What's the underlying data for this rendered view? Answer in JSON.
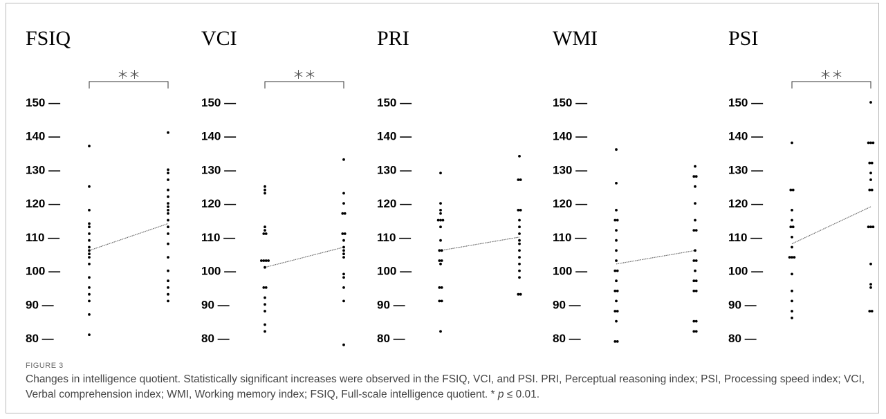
{
  "figure": {
    "label": "FIGURE 3",
    "caption_main": "Changes in intelligence quotient. Statistically significant increases were observed in the FSIQ, VCI, and PSI. PRI, Perceptual reasoning index; PSI, Processing speed index; VCI, Verbal comprehension index; WMI, Working memory index; FSIQ, Full-scale intelligence quotient. * ",
    "caption_p": "p",
    "caption_tail": " ≤ 0.01.",
    "tick_suffix": " —"
  },
  "colors": {
    "points": "#000000",
    "mean_line": "#666666",
    "bracket": "#333333",
    "text": "#000000"
  },
  "chart_data": [
    {
      "type": "scatter",
      "title": "FSIQ",
      "significance": "＊＊",
      "yticks": [
        80,
        90,
        100,
        110,
        120,
        130,
        140,
        150
      ],
      "ylim": [
        78,
        152
      ],
      "mean": [
        106,
        114
      ],
      "x": [
        "pre",
        "post"
      ],
      "pre": [
        137,
        125,
        118,
        114,
        113,
        111,
        109,
        107,
        106,
        105,
        104,
        102,
        98,
        95,
        93,
        91,
        87,
        81
      ],
      "post": [
        141,
        130,
        129,
        127,
        124,
        122,
        120,
        119,
        118,
        117,
        115,
        113,
        111,
        108,
        104,
        100,
        97,
        95,
        93,
        91
      ]
    },
    {
      "type": "scatter",
      "title": "VCI",
      "significance": "＊＊",
      "yticks": [
        80,
        90,
        100,
        110,
        120,
        130,
        140,
        150
      ],
      "ylim": [
        78,
        152
      ],
      "mean": [
        101,
        107
      ],
      "x": [
        "pre",
        "post"
      ],
      "pre": [
        125,
        124,
        123,
        113,
        112,
        111,
        111,
        103,
        103,
        103,
        103,
        101,
        95,
        95,
        92,
        90,
        88,
        84,
        82
      ],
      "post": [
        133,
        123,
        120,
        117,
        117,
        111,
        111,
        109,
        107,
        106,
        105,
        104,
        99,
        98,
        95,
        91,
        78
      ]
    },
    {
      "type": "scatter",
      "title": "PRI",
      "yticks": [
        80,
        90,
        100,
        110,
        120,
        130,
        140,
        150
      ],
      "ylim": [
        78,
        152
      ],
      "mean": [
        106,
        110
      ],
      "x": [
        "pre",
        "post"
      ],
      "pre": [
        129,
        120,
        118,
        117,
        115,
        115,
        115,
        113,
        109,
        106,
        106,
        103,
        103,
        102,
        95,
        95,
        91,
        91,
        82
      ],
      "post": [
        134,
        127,
        127,
        118,
        118,
        115,
        113,
        111,
        109,
        108,
        106,
        104,
        102,
        100,
        98,
        93,
        93
      ]
    },
    {
      "type": "scatter",
      "title": "WMI",
      "yticks": [
        80,
        90,
        100,
        110,
        120,
        130,
        140,
        150
      ],
      "ylim": [
        78,
        152
      ],
      "mean": [
        102,
        106
      ],
      "x": [
        "pre",
        "post"
      ],
      "pre": [
        136,
        126,
        118,
        115,
        115,
        112,
        109,
        106,
        103,
        100,
        100,
        97,
        94,
        94,
        91,
        88,
        88,
        85,
        79,
        79
      ],
      "post": [
        131,
        128,
        128,
        125,
        120,
        115,
        112,
        112,
        106,
        103,
        103,
        100,
        97,
        97,
        94,
        94,
        85,
        85,
        82,
        82
      ]
    },
    {
      "type": "scatter",
      "title": "PSI",
      "significance": "＊＊",
      "yticks": [
        80,
        90,
        100,
        110,
        120,
        130,
        140,
        150
      ],
      "ylim": [
        78,
        152
      ],
      "mean": [
        108,
        119
      ],
      "x": [
        "pre",
        "post"
      ],
      "pre": [
        138,
        124,
        124,
        118,
        115,
        113,
        113,
        110,
        107,
        104,
        104,
        104,
        99,
        94,
        91,
        88,
        86
      ],
      "post": [
        150,
        138,
        138,
        138,
        132,
        132,
        129,
        127,
        124,
        124,
        113,
        113,
        113,
        102,
        96,
        95,
        88,
        88
      ]
    }
  ]
}
